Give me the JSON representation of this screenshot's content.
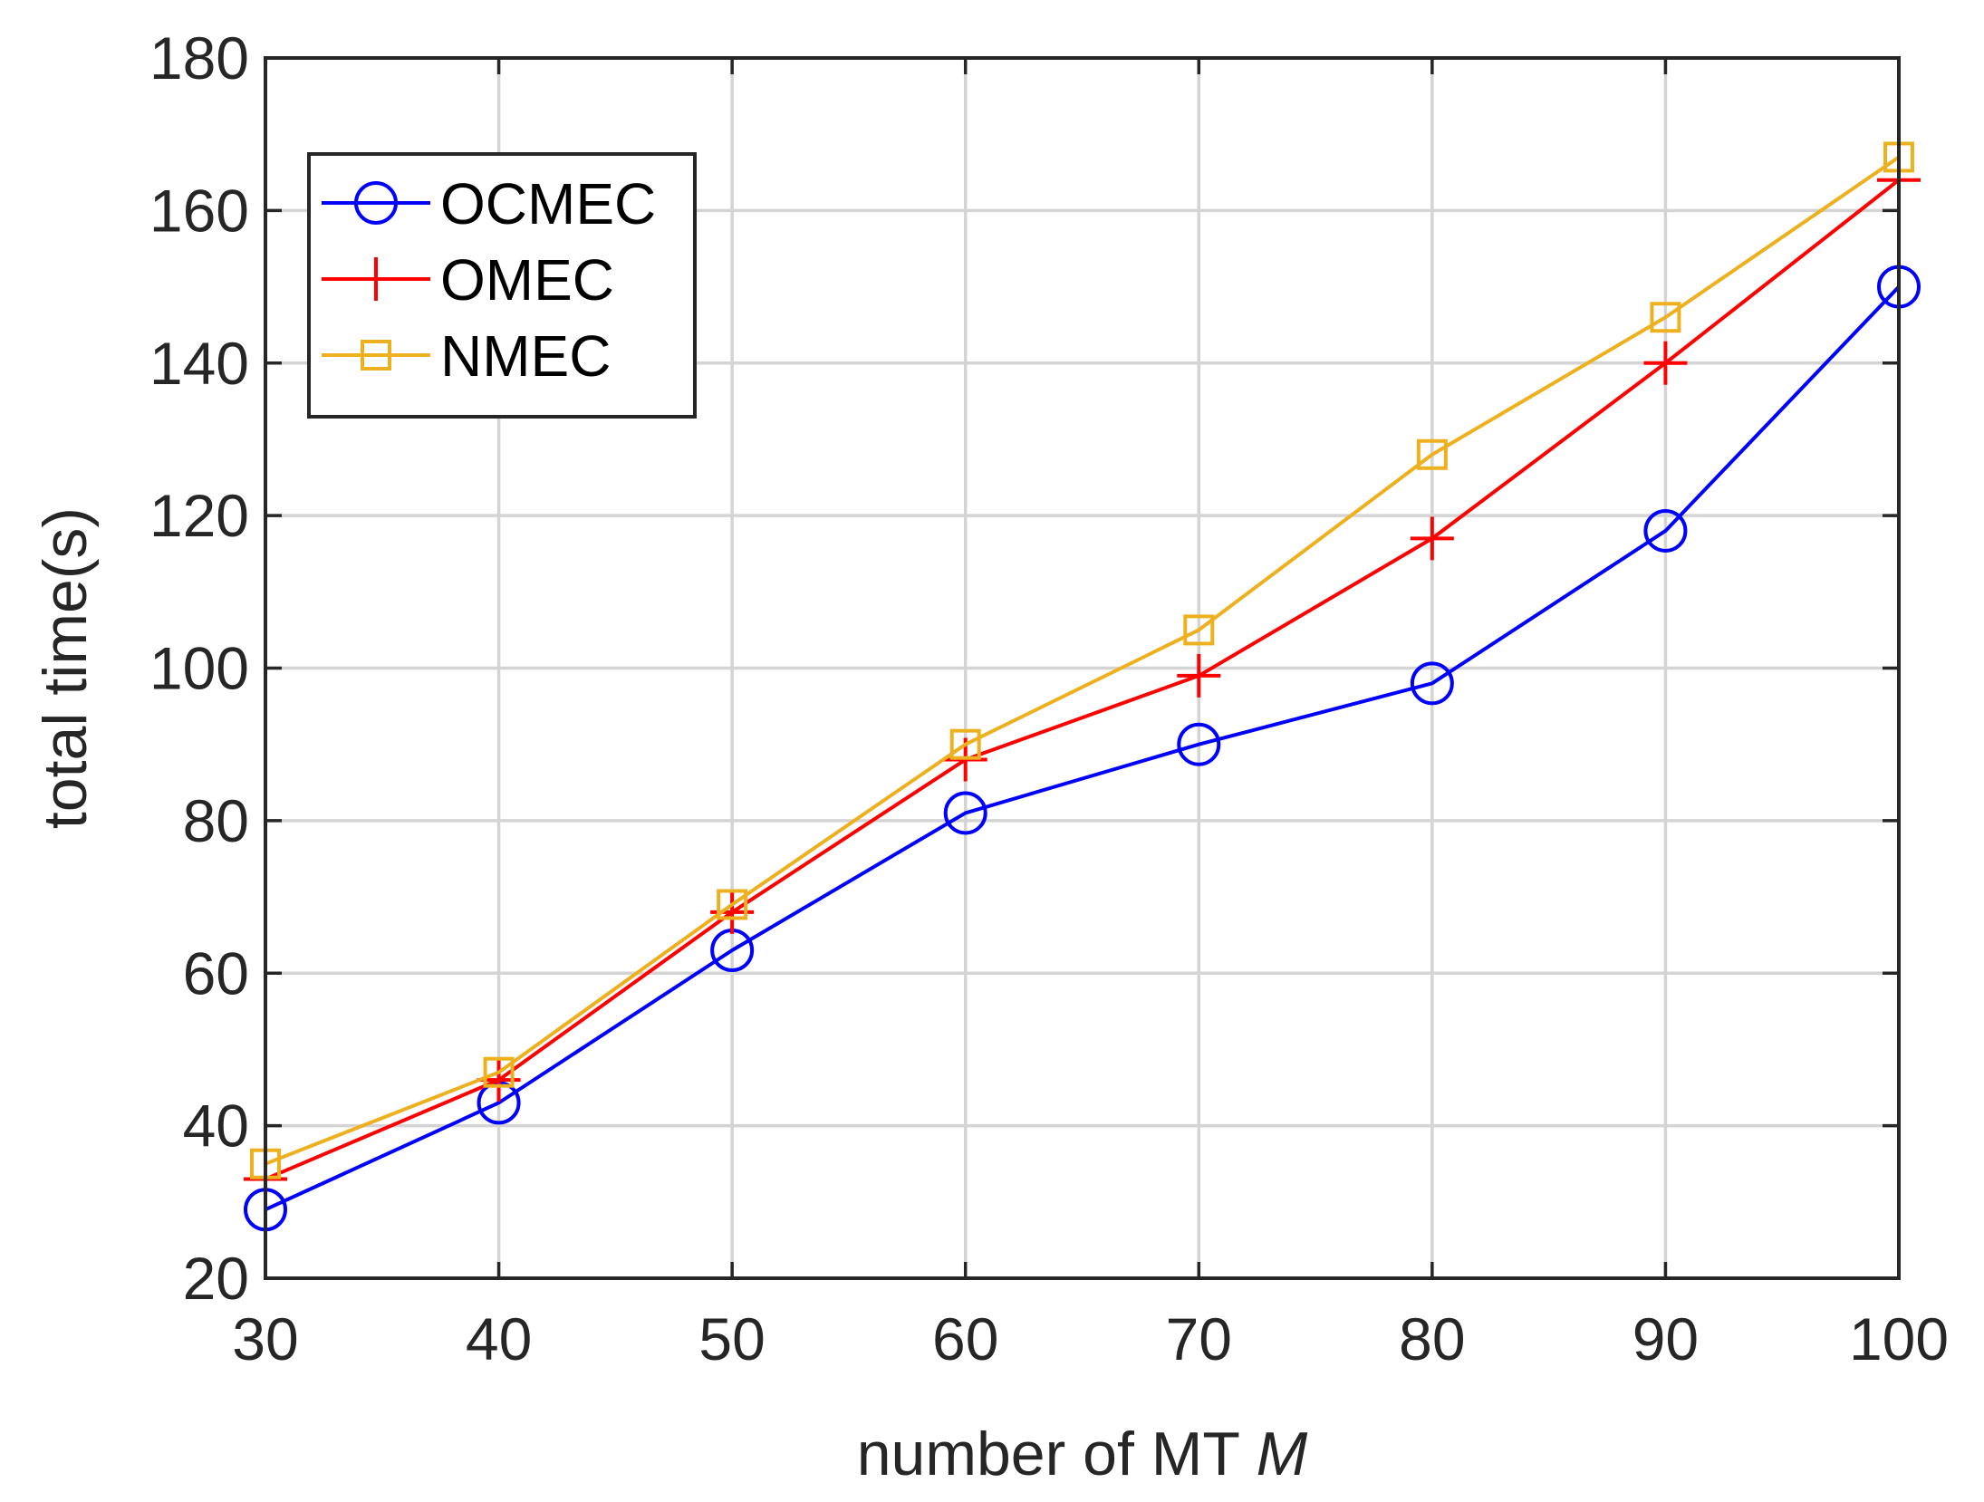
{
  "chart_data": {
    "type": "line",
    "title": "",
    "xlabel": "number of MT",
    "xlabel_var": "M",
    "ylabel": "total time(s)",
    "x": [
      30,
      40,
      50,
      60,
      70,
      80,
      90,
      100
    ],
    "xlim": [
      30,
      100
    ],
    "ylim": [
      20,
      180
    ],
    "xticks": [
      30,
      40,
      50,
      60,
      70,
      80,
      90,
      100
    ],
    "yticks": [
      20,
      40,
      60,
      80,
      100,
      120,
      140,
      160,
      180
    ],
    "grid": true,
    "legend_position": "top-left",
    "series": [
      {
        "name": "OCMEC",
        "color": "#0000ff",
        "marker": "circle",
        "values": [
          29,
          43,
          63,
          81,
          90,
          98,
          118,
          150
        ]
      },
      {
        "name": "OMEC",
        "color": "#ff0000",
        "marker": "plus",
        "values": [
          33,
          46,
          68,
          88,
          99,
          117,
          140,
          164
        ]
      },
      {
        "name": "NMEC",
        "color": "#edb120",
        "marker": "square",
        "values": [
          35,
          47,
          69,
          90,
          105,
          128,
          146,
          167
        ]
      }
    ]
  }
}
